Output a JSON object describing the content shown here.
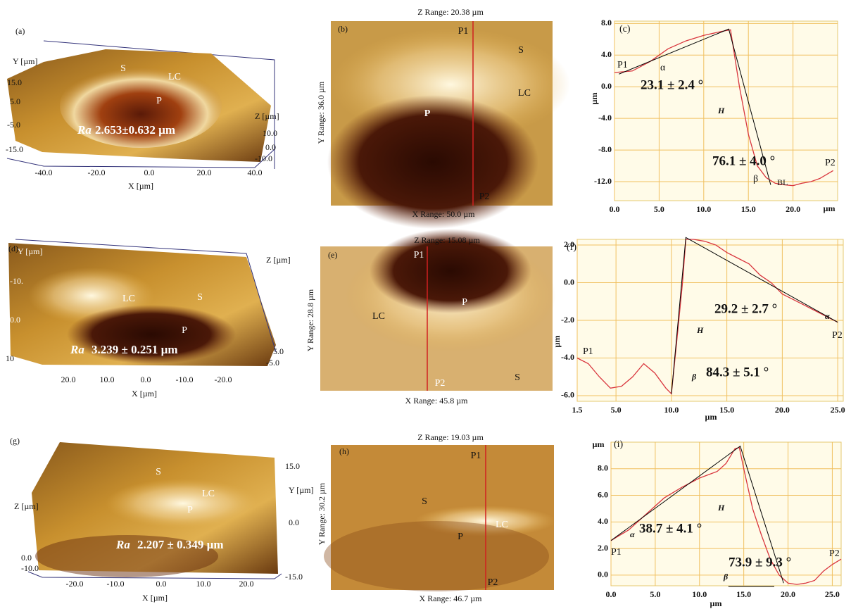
{
  "panels": [
    {
      "texts": [
        "(a)",
        "Y [µm]",
        "15.0",
        "5.0",
        "-5.0",
        "-15.0",
        "S",
        "LC",
        "P",
        "Ra",
        "2.653±0.632 µm",
        "Z [µm]",
        "10.0",
        "0.0",
        "-10.0",
        "-40.0",
        "-20.0",
        "0.0",
        "20.0",
        "40.0",
        "X [µm]"
      ]
    },
    {
      "texts": [
        "(b)",
        "Z Range: 20.38 µm",
        "P1",
        "S",
        "LC",
        "P",
        "P2",
        "Y Range: 36.0 µm",
        "X Range: 50.0 µm"
      ]
    },
    {
      "texts": [
        "(d)",
        "Y [µm]",
        "-10.",
        "0.0",
        "10",
        "Z [µm]",
        "LC",
        "S",
        "P",
        "Ra",
        "3.239 ± 0.251 µm",
        "5.0",
        "-5.0",
        "20.0",
        "10.0",
        "0.0",
        "-10.0",
        "-20.0",
        "X [µm]"
      ]
    },
    {
      "texts": [
        "(e)",
        "Z Range: 15.08 µm",
        "P1",
        "LC",
        "P",
        "S",
        "P2",
        "Y Range: 28.8 µm",
        "X Range: 45.8 µm"
      ]
    },
    {
      "texts": [
        "(g)",
        "S",
        "LC",
        "P",
        "15.0",
        "Y [µm]",
        "Z [µm]",
        "0.0",
        "Ra",
        "2.207 ± 0.349 µm",
        "0.0",
        "-10.0",
        "-20.0",
        "-10.0",
        "0.0",
        "10.0",
        "20.0",
        "-15.0",
        "X [µm]"
      ]
    },
    {
      "texts": [
        "(h)",
        "Z Range: 19.03 µm",
        "P1",
        "S",
        "LC",
        "P",
        "P2",
        "Y Range: 30.2 µm",
        "X Range: 46.7 µm"
      ]
    }
  ],
  "chart_data": [
    {
      "type": "line",
      "xlabel": "µm",
      "ylabel": "µm",
      "grid": true,
      "xlim": [
        0,
        25
      ],
      "ylim": [
        -14.4,
        8.3
      ],
      "xticks": [
        {
          "value": 0,
          "label": "0.0"
        },
        {
          "value": 5,
          "label": "5.0"
        },
        {
          "value": 10,
          "label": "10.0"
        },
        {
          "value": 15,
          "label": "15.0"
        },
        {
          "value": 20,
          "label": "20.0"
        }
      ],
      "yticks": [
        {
          "value": 8,
          "label": "8.0"
        },
        {
          "value": 4,
          "label": "4.0"
        },
        {
          "value": 0,
          "label": "0.0"
        },
        {
          "value": -4,
          "label": "-4.0"
        },
        {
          "value": -8,
          "label": "-8.0"
        },
        {
          "value": -12,
          "label": "-12.0"
        }
      ],
      "series": [
        {
          "color": "#d9363e",
          "x": [
            0,
            2,
            4,
            6,
            8,
            10,
            12,
            13,
            14,
            15,
            16,
            17,
            18,
            19,
            20,
            21,
            22,
            23,
            24.5
          ],
          "values": [
            1.8,
            2.0,
            3.2,
            4.8,
            5.8,
            6.5,
            7.0,
            7.2,
            0,
            -6,
            -10,
            -11.5,
            -12.2,
            -12.4,
            -12.5,
            -12.2,
            -12.0,
            -11.6,
            -10.6
          ]
        },
        {
          "color": "#000000",
          "x": [
            0.5,
            12.8,
            17.5
          ],
          "values": [
            1.6,
            7.3,
            -12.4
          ]
        }
      ],
      "annotations": [
        "(c)",
        "P1",
        "α",
        "23.1 ± 2.4 °",
        "H",
        "76.1 ± 4.0 °",
        "β",
        "BL",
        "P2"
      ]
    },
    {
      "type": "line",
      "xlabel": "µm",
      "ylabel": "µm",
      "grid": true,
      "xlim": [
        1.5,
        25.5
      ],
      "ylim": [
        -6.3,
        2.3
      ],
      "xticks": [
        1.5,
        {
          "value": 5,
          "label": "5.0"
        },
        {
          "value": 10,
          "label": "10.0"
        },
        {
          "value": 15,
          "label": "15.0"
        },
        {
          "value": 20,
          "label": "20.0"
        },
        {
          "value": 25,
          "label": "25.0"
        }
      ],
      "yticks": [
        {
          "value": 2,
          "label": "2.0"
        },
        {
          "value": 0,
          "label": "0.0"
        },
        {
          "value": -2,
          "label": "-2.0"
        },
        {
          "value": -4,
          "label": "-4.0"
        },
        {
          "value": -6,
          "label": "-6.0"
        }
      ],
      "series": [
        {
          "color": "#d9363e",
          "x": [
            1.5,
            2.5,
            3.5,
            4.5,
            5.5,
            6.5,
            7.5,
            8.5,
            9.5,
            10,
            10.5,
            11,
            11.3,
            12,
            13,
            14,
            15,
            16,
            17,
            18,
            19,
            20,
            21,
            22,
            23,
            24,
            25
          ],
          "values": [
            -4.0,
            -4.3,
            -5.0,
            -5.6,
            -5.5,
            -5.0,
            -4.3,
            -4.8,
            -5.6,
            -5.9,
            -3.0,
            0,
            2.3,
            2.3,
            2.2,
            2.0,
            1.6,
            1.3,
            1.0,
            0.4,
            0,
            -0.6,
            -0.9,
            -1.2,
            -1.5,
            -1.8,
            -2.1
          ]
        },
        {
          "color": "#000000",
          "x": [
            10,
            11.3,
            25
          ],
          "values": [
            -5.9,
            2.4,
            -2.1
          ]
        }
      ],
      "annotations": [
        "(f)",
        "P1",
        "P2",
        "α",
        "29.2 ±  2.7 °",
        "H",
        "β",
        "84.3 ±  5.1 °"
      ]
    },
    {
      "type": "line",
      "xlabel": "µm",
      "ylabel": "µm",
      "grid": true,
      "xlim": [
        0,
        26
      ],
      "ylim": [
        -0.8,
        10
      ],
      "xticks": [
        {
          "value": 0,
          "label": "0.0"
        },
        {
          "value": 5,
          "label": "5.0"
        },
        {
          "value": 10,
          "label": "10.0"
        },
        {
          "value": 15,
          "label": "15.0"
        },
        {
          "value": 20,
          "label": "20.0"
        },
        {
          "value": 25,
          "label": "25.0"
        }
      ],
      "yticks": [
        {
          "value": 0,
          "label": "0.0"
        },
        {
          "value": 2,
          "label": "2.0"
        },
        {
          "value": 4,
          "label": "4.0"
        },
        {
          "value": 6,
          "label": "6.0"
        },
        {
          "value": 8,
          "label": "8.0"
        }
      ],
      "series": [
        {
          "color": "#d9363e",
          "x": [
            0,
            2,
            4,
            6,
            8,
            10,
            12,
            13,
            14,
            14.5,
            15,
            16,
            17,
            18,
            19,
            20,
            21,
            22,
            23,
            24,
            25,
            26
          ],
          "values": [
            2.6,
            3.4,
            4.6,
            5.8,
            6.6,
            7.3,
            7.8,
            8.4,
            9.5,
            9.6,
            8.0,
            5.0,
            3.0,
            1.2,
            0,
            -0.6,
            -0.7,
            -0.6,
            -0.4,
            0.3,
            0.8,
            1.2
          ]
        },
        {
          "color": "#000000",
          "x": [
            0,
            14.6,
            19.5
          ],
          "values": [
            2.6,
            9.7,
            -0.6
          ]
        }
      ],
      "annotations": [
        "(i)",
        "P1",
        "α",
        "38.7 ± 4.1 °",
        "H",
        "73.9 ± 9.3 °",
        "β",
        "P2"
      ]
    }
  ]
}
